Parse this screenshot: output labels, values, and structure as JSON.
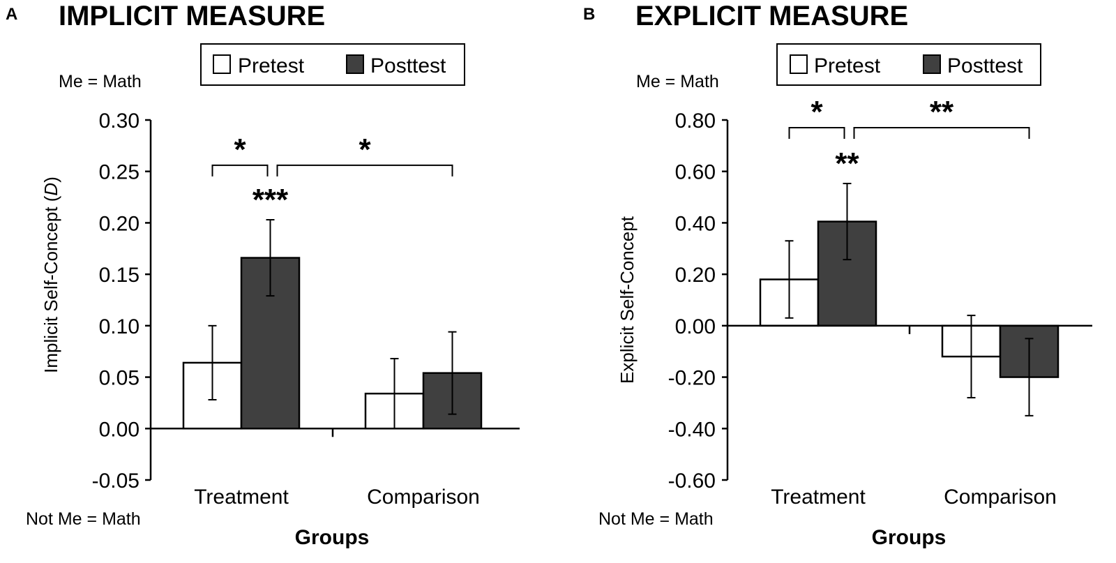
{
  "colors": {
    "pretest_fill": "#ffffff",
    "posttest_fill": "#404040",
    "stroke": "#000000",
    "background": "#ffffff"
  },
  "legend": [
    "Pretest",
    "Posttest"
  ],
  "chart_data": [
    {
      "type": "bar",
      "panel": "A",
      "title": "IMPLICIT MEASURE",
      "xlabel": "Groups",
      "ylabel": "Implicit Self-Concept (D)",
      "top_pole": "Me = Math",
      "bottom_pole": "Not Me = Math",
      "categories": [
        "Treatment",
        "Comparison"
      ],
      "ylim": [
        -0.05,
        0.3
      ],
      "yticks": [
        -0.05,
        0.0,
        0.05,
        0.1,
        0.15,
        0.2,
        0.25,
        0.3
      ],
      "ytick_labels": [
        "-0.05",
        "0.00",
        "0.05",
        "0.10",
        "0.15",
        "0.20",
        "0.25",
        "0.30"
      ],
      "series": [
        {
          "name": "Pretest",
          "values": [
            0.064,
            0.034
          ],
          "errors": [
            0.036,
            0.034
          ]
        },
        {
          "name": "Posttest",
          "values": [
            0.166,
            0.054
          ],
          "errors": [
            0.037,
            0.04
          ]
        }
      ],
      "annotations": [
        {
          "label": "***",
          "type": "bar",
          "category": 0,
          "series": 1
        },
        {
          "label": "*",
          "type": "bracket",
          "from": [
            0,
            0
          ],
          "to": [
            0,
            1
          ],
          "level": 0.256
        },
        {
          "label": "*",
          "type": "bracket",
          "from": [
            0,
            1
          ],
          "to": [
            1,
            1
          ],
          "level": 0.256
        }
      ],
      "grid": false,
      "legend_position": "top"
    },
    {
      "type": "bar",
      "panel": "B",
      "title": "EXPLICIT MEASURE",
      "xlabel": "Groups",
      "ylabel": "Explicit Self-Concept",
      "top_pole": "Me = Math",
      "bottom_pole": "Not Me = Math",
      "categories": [
        "Treatment",
        "Comparison"
      ],
      "ylim": [
        -0.6,
        0.8
      ],
      "yticks": [
        -0.6,
        -0.4,
        -0.2,
        0.0,
        0.2,
        0.4,
        0.6,
        0.8
      ],
      "ytick_labels": [
        "-0.60",
        "-0.40",
        "-0.20",
        "0.00",
        "0.20",
        "0.40",
        "0.60",
        "0.80"
      ],
      "series": [
        {
          "name": "Pretest",
          "values": [
            0.18,
            -0.12
          ],
          "errors": [
            0.15,
            0.16
          ]
        },
        {
          "name": "Posttest",
          "values": [
            0.405,
            -0.2
          ],
          "errors": [
            0.148,
            0.15
          ]
        }
      ],
      "annotations": [
        {
          "label": "**",
          "type": "bar",
          "category": 0,
          "series": 1
        },
        {
          "label": "*",
          "type": "bracket",
          "from": [
            0,
            0
          ],
          "to": [
            0,
            1
          ],
          "level": 0.77
        },
        {
          "label": "**",
          "type": "bracket",
          "from": [
            0,
            1
          ],
          "to": [
            1,
            1
          ],
          "level": 0.77
        }
      ],
      "grid": false,
      "legend_position": "top"
    }
  ]
}
